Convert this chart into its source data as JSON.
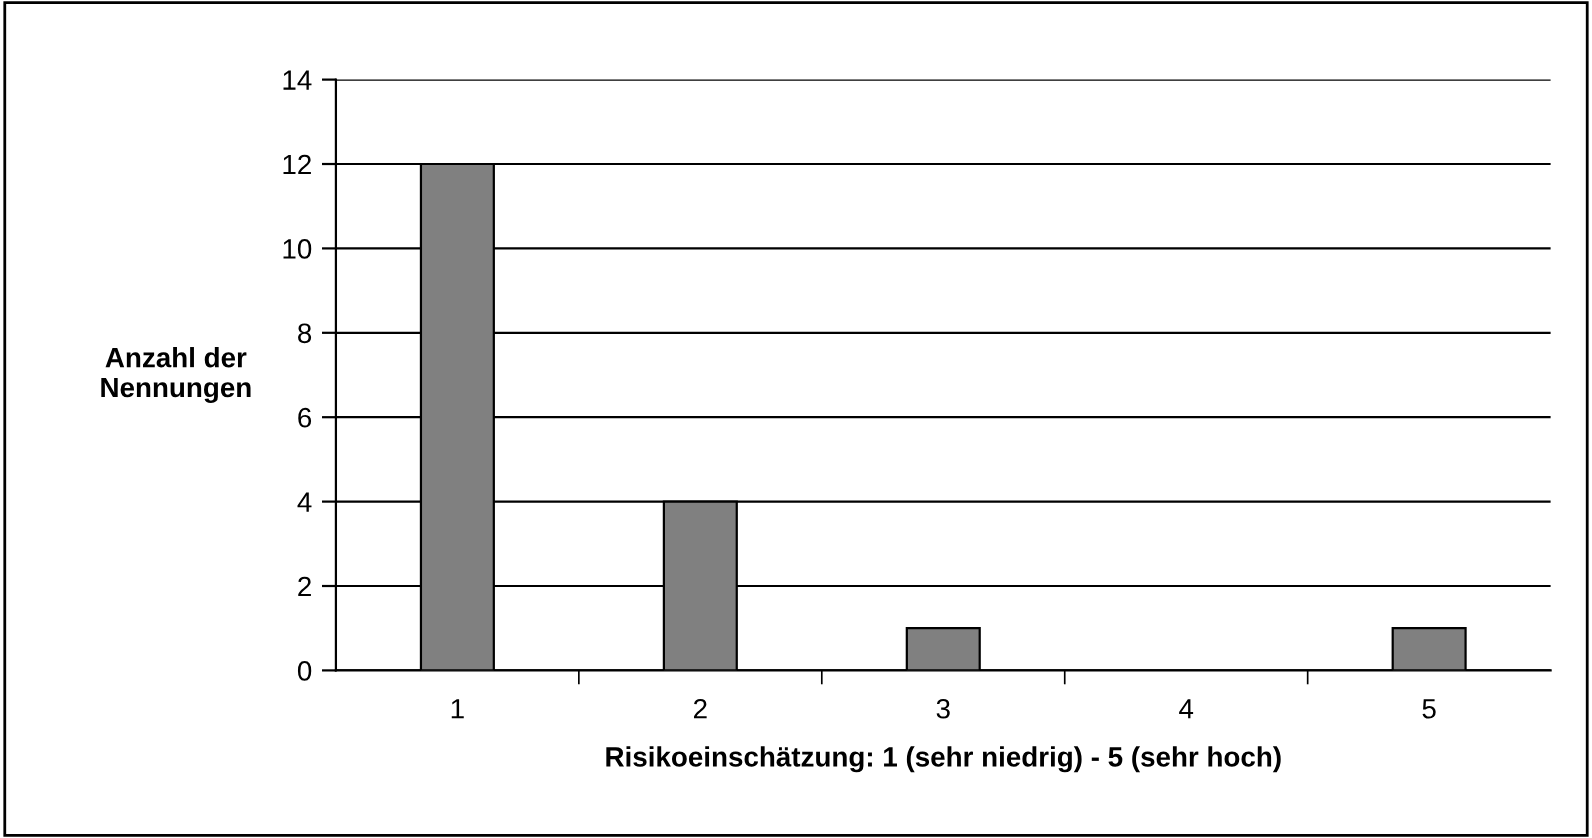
{
  "chart_data": {
    "type": "bar",
    "xlabel": "Risikoeinschätzung: 1 (sehr niedrig) - 5 (sehr hoch)",
    "ylabel": "Anzahl der\nNennungen",
    "categories": [
      "1",
      "2",
      "3",
      "4",
      "5"
    ],
    "values": [
      12,
      4,
      1,
      0,
      1
    ],
    "color": "#808080",
    "ylim": [
      0,
      14
    ],
    "yticks": [
      0,
      2,
      4,
      6,
      8,
      10,
      12,
      14
    ],
    "grid": "y",
    "legend": false
  }
}
